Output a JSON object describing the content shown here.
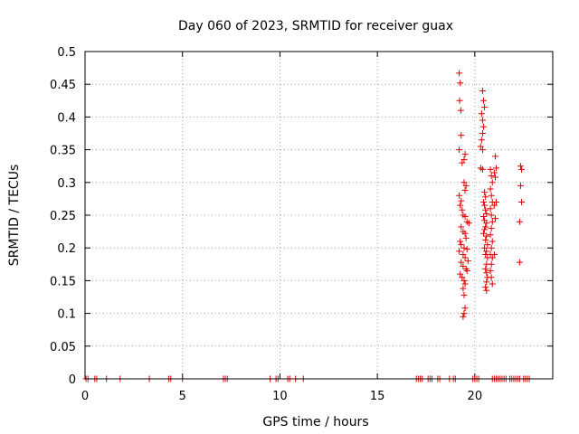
{
  "chart_data": {
    "type": "scatter",
    "title": "Day 060 of 2023, SRMTID for receiver guax",
    "xlabel": "GPS time / hours",
    "ylabel": "SRMTID / TECUs",
    "xlim": [
      0,
      24
    ],
    "ylim": [
      0,
      0.5
    ],
    "xticks": [
      0,
      5,
      10,
      15,
      20
    ],
    "xtick_labels": [
      "0",
      "5",
      "10",
      "15",
      "20"
    ],
    "yticks": [
      0,
      0.05,
      0.1,
      0.15,
      0.2,
      0.25,
      0.3,
      0.35,
      0.4,
      0.45,
      0.5
    ],
    "ytick_labels": [
      "0",
      "0.05",
      "0.1",
      "0.15",
      "0.2",
      "0.25",
      "0.3",
      "0.35",
      "0.4",
      "0.45",
      "0.5"
    ],
    "grid": true,
    "marker": "+",
    "color": "#e00000",
    "series": [
      {
        "name": "SRMTID",
        "points": [
          [
            0.05,
            0
          ],
          [
            0.15,
            0
          ],
          [
            0.5,
            0
          ],
          [
            0.6,
            0
          ],
          [
            1.1,
            0
          ],
          [
            1.8,
            0
          ],
          [
            3.3,
            0
          ],
          [
            4.3,
            0
          ],
          [
            4.4,
            0
          ],
          [
            5.0,
            0
          ],
          [
            7.1,
            0
          ],
          [
            7.2,
            0
          ],
          [
            7.3,
            0
          ],
          [
            9.5,
            0
          ],
          [
            9.8,
            0
          ],
          [
            9.9,
            0
          ],
          [
            10.4,
            0
          ],
          [
            10.5,
            0
          ],
          [
            10.8,
            0
          ],
          [
            11.2,
            0
          ],
          [
            17.0,
            0
          ],
          [
            17.1,
            0
          ],
          [
            17.2,
            0
          ],
          [
            17.3,
            0
          ],
          [
            17.6,
            0
          ],
          [
            17.7,
            0
          ],
          [
            17.8,
            0
          ],
          [
            18.1,
            0
          ],
          [
            18.2,
            0
          ],
          [
            18.7,
            0
          ],
          [
            18.9,
            0
          ],
          [
            19.0,
            0
          ],
          [
            19.9,
            0
          ],
          [
            20.0,
            0
          ],
          [
            20.1,
            0
          ],
          [
            20.2,
            0
          ],
          [
            20.9,
            0
          ],
          [
            21.0,
            0
          ],
          [
            21.1,
            0
          ],
          [
            21.2,
            0
          ],
          [
            21.3,
            0
          ],
          [
            21.4,
            0
          ],
          [
            21.5,
            0
          ],
          [
            21.6,
            0
          ],
          [
            21.8,
            0
          ],
          [
            21.9,
            0
          ],
          [
            22.0,
            0
          ],
          [
            22.1,
            0
          ],
          [
            22.2,
            0
          ],
          [
            22.3,
            0
          ],
          [
            22.5,
            0
          ],
          [
            22.6,
            0
          ],
          [
            22.7,
            0
          ],
          [
            22.8,
            0
          ],
          [
            19.2,
            0.467
          ],
          [
            19.25,
            0.452
          ],
          [
            19.22,
            0.425
          ],
          [
            19.28,
            0.41
          ],
          [
            19.3,
            0.372
          ],
          [
            19.2,
            0.35
          ],
          [
            19.35,
            0.33
          ],
          [
            19.45,
            0.335
          ],
          [
            19.5,
            0.343
          ],
          [
            19.45,
            0.3
          ],
          [
            19.55,
            0.295
          ],
          [
            19.5,
            0.288
          ],
          [
            19.2,
            0.28
          ],
          [
            19.3,
            0.272
          ],
          [
            19.25,
            0.265
          ],
          [
            19.35,
            0.258
          ],
          [
            19.4,
            0.25
          ],
          [
            19.5,
            0.248
          ],
          [
            19.6,
            0.24
          ],
          [
            19.7,
            0.238
          ],
          [
            19.3,
            0.232
          ],
          [
            19.4,
            0.225
          ],
          [
            19.5,
            0.222
          ],
          [
            19.55,
            0.215
          ],
          [
            19.25,
            0.21
          ],
          [
            19.3,
            0.205
          ],
          [
            19.45,
            0.2
          ],
          [
            19.6,
            0.198
          ],
          [
            19.2,
            0.195
          ],
          [
            19.4,
            0.19
          ],
          [
            19.5,
            0.185
          ],
          [
            19.65,
            0.18
          ],
          [
            19.3,
            0.178
          ],
          [
            19.4,
            0.172
          ],
          [
            19.55,
            0.168
          ],
          [
            19.6,
            0.165
          ],
          [
            19.25,
            0.16
          ],
          [
            19.35,
            0.155
          ],
          [
            19.45,
            0.15
          ],
          [
            19.5,
            0.145
          ],
          [
            19.4,
            0.138
          ],
          [
            19.45,
            0.128
          ],
          [
            19.5,
            0.108
          ],
          [
            19.45,
            0.1
          ],
          [
            19.4,
            0.095
          ],
          [
            20.4,
            0.44
          ],
          [
            20.45,
            0.425
          ],
          [
            20.5,
            0.415
          ],
          [
            20.35,
            0.405
          ],
          [
            20.4,
            0.395
          ],
          [
            20.45,
            0.385
          ],
          [
            20.4,
            0.375
          ],
          [
            20.35,
            0.365
          ],
          [
            20.3,
            0.355
          ],
          [
            20.4,
            0.35
          ],
          [
            20.3,
            0.322
          ],
          [
            20.4,
            0.32
          ],
          [
            20.5,
            0.285
          ],
          [
            20.55,
            0.278
          ],
          [
            20.45,
            0.27
          ],
          [
            20.5,
            0.265
          ],
          [
            20.55,
            0.258
          ],
          [
            20.6,
            0.252
          ],
          [
            20.45,
            0.248
          ],
          [
            20.5,
            0.242
          ],
          [
            20.6,
            0.238
          ],
          [
            20.55,
            0.232
          ],
          [
            20.5,
            0.228
          ],
          [
            20.45,
            0.222
          ],
          [
            20.6,
            0.218
          ],
          [
            20.55,
            0.212
          ],
          [
            20.65,
            0.205
          ],
          [
            20.5,
            0.2
          ],
          [
            20.6,
            0.195
          ],
          [
            20.55,
            0.19
          ],
          [
            20.65,
            0.185
          ],
          [
            20.6,
            0.175
          ],
          [
            20.55,
            0.168
          ],
          [
            20.6,
            0.162
          ],
          [
            20.65,
            0.155
          ],
          [
            20.6,
            0.148
          ],
          [
            20.55,
            0.14
          ],
          [
            20.6,
            0.135
          ],
          [
            20.8,
            0.32
          ],
          [
            20.85,
            0.31
          ],
          [
            20.9,
            0.3
          ],
          [
            20.8,
            0.29
          ],
          [
            20.85,
            0.28
          ],
          [
            20.9,
            0.27
          ],
          [
            20.8,
            0.26
          ],
          [
            20.85,
            0.25
          ],
          [
            20.9,
            0.24
          ],
          [
            20.85,
            0.23
          ],
          [
            20.8,
            0.22
          ],
          [
            20.9,
            0.21
          ],
          [
            20.85,
            0.2
          ],
          [
            20.8,
            0.19
          ],
          [
            20.9,
            0.185
          ],
          [
            20.85,
            0.175
          ],
          [
            20.8,
            0.165
          ],
          [
            20.85,
            0.155
          ],
          [
            20.9,
            0.145
          ],
          [
            21.05,
            0.34
          ],
          [
            21.1,
            0.322
          ],
          [
            21.0,
            0.315
          ],
          [
            21.05,
            0.308
          ],
          [
            21.1,
            0.27
          ],
          [
            21.0,
            0.265
          ],
          [
            21.05,
            0.245
          ],
          [
            21.0,
            0.19
          ],
          [
            22.35,
            0.325
          ],
          [
            22.4,
            0.32
          ],
          [
            22.35,
            0.295
          ],
          [
            22.4,
            0.27
          ],
          [
            22.3,
            0.24
          ],
          [
            22.3,
            0.178
          ]
        ]
      }
    ]
  }
}
